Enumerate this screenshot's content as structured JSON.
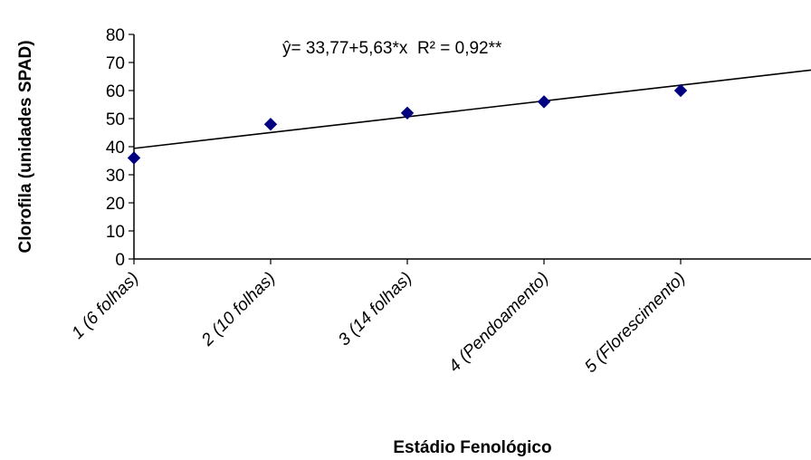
{
  "chart_data": {
    "type": "scatter",
    "title": "",
    "xlabel": "Estádio Fenológico",
    "ylabel": "Clorofila (unidades SPAD)",
    "categories": [
      "1 (6 folhas)",
      "2 (10 folhas)",
      "3 (14 folhas)",
      "4 (Pendoamento)",
      "5 (Florescimento)"
    ],
    "x": [
      1,
      2,
      3,
      4,
      5
    ],
    "y": [
      36,
      48,
      52,
      56,
      60
    ],
    "ylim": [
      0,
      80
    ],
    "yticks": [
      "0",
      "10",
      "20",
      "30",
      "40",
      "50",
      "60",
      "70",
      "80"
    ],
    "grid": false,
    "legend": "none",
    "marker": "diamond",
    "marker_color": "#000080",
    "trendline": {
      "type": "linear",
      "intercept": 33.77,
      "slope": 5.63,
      "r_squared": 0.92,
      "equation_label": "ŷ= 33,77+5,63*x  R² = 0,92**",
      "color": "#000000"
    }
  }
}
